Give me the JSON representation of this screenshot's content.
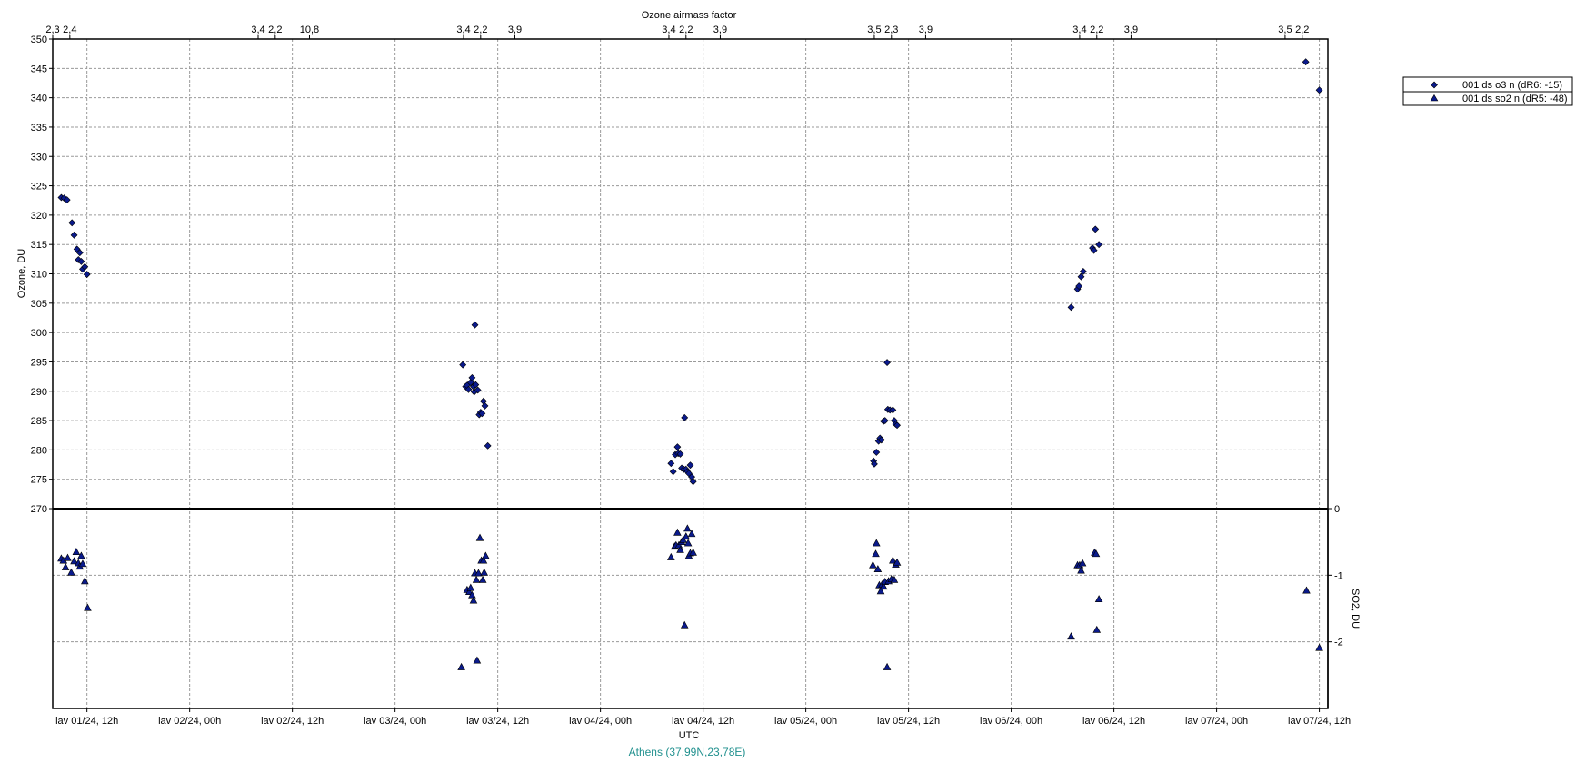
{
  "chart_data": {
    "type": "scatter",
    "top_axis": {
      "title": "Ozone airmass factor",
      "ticks": [
        {
          "x": "lav 01/24, 08h",
          "label": "2,3"
        },
        {
          "x": "lav 01/24, 10h",
          "label": "2,4"
        },
        {
          "x": "lav 02/24, 08h",
          "label": "3,4"
        },
        {
          "x": "lav 02/24, 10h",
          "label": "2,2"
        },
        {
          "x": "lav 02/24, 14h",
          "label": "10,8"
        },
        {
          "x": "lav 03/24, 08h",
          "label": "3,4"
        },
        {
          "x": "lav 03/24, 10h",
          "label": "2,2"
        },
        {
          "x": "lav 03/24, 14h",
          "label": "3,9"
        },
        {
          "x": "lav 04/24, 08h",
          "label": "3,4"
        },
        {
          "x": "lav 04/24, 10h",
          "label": "2,2"
        },
        {
          "x": "lav 04/24, 14h",
          "label": "3,9"
        },
        {
          "x": "lav 05/24, 08h",
          "label": "3,5"
        },
        {
          "x": "lav 05/24, 10h",
          "label": "2,3"
        },
        {
          "x": "lav 05/24, 14h",
          "label": "3,9"
        },
        {
          "x": "lav 06/24, 08h",
          "label": "3,4"
        },
        {
          "x": "lav 06/24, 10h",
          "label": "2,2"
        },
        {
          "x": "lav 06/24, 14h",
          "label": "3,9"
        },
        {
          "x": "lav 07/24, 08h",
          "label": "3,5"
        },
        {
          "x": "lav 07/24, 10h",
          "label": "2,2"
        }
      ]
    },
    "x_axis": {
      "title": "UTC",
      "ticks": [
        "lav 01/24, 12h",
        "lav 02/24, 00h",
        "lav 02/24, 12h",
        "lav 03/24, 00h",
        "lav 03/24, 12h",
        "lav 04/24, 00h",
        "lav 04/24, 12h",
        "lav 05/24, 00h",
        "lav 05/24, 12h",
        "lav 06/24, 00h",
        "lav 06/24, 12h",
        "lav 07/24, 00h",
        "lav 07/24, 12h"
      ]
    },
    "ozone_axis": {
      "title": "Ozone, DU",
      "range": [
        270,
        350
      ],
      "ticks": [
        270,
        275,
        280,
        285,
        290,
        295,
        300,
        305,
        310,
        315,
        320,
        325,
        330,
        335,
        340,
        345,
        350
      ]
    },
    "so2_axis": {
      "title": "SO2, DU",
      "range": [
        -3,
        0
      ],
      "ticks": [
        {
          "value": 0,
          "label": "0"
        },
        {
          "value": -1,
          "label": "-1"
        },
        {
          "value": -2,
          "label": "-2"
        }
      ]
    },
    "grid": true,
    "legend_position": "top-right",
    "footer": "Athens (37,99N,23,78E)",
    "series": [
      {
        "name": "001 ds o3  n (dR6: -15)",
        "marker": "diamond",
        "color": "#0a1a8c",
        "axis": "ozone",
        "points": [
          [
            "lav 01/24, 09:00",
            323.0
          ],
          [
            "lav 01/24, 09:20",
            322.9
          ],
          [
            "lav 01/24, 09:40",
            322.6
          ],
          [
            "lav 01/24, 10:15",
            318.7
          ],
          [
            "lav 01/24, 10:30",
            316.6
          ],
          [
            "lav 01/24, 10:50",
            314.2
          ],
          [
            "lav 01/24, 11:00",
            312.4
          ],
          [
            "lav 01/24, 11:10",
            313.6
          ],
          [
            "lav 01/24, 11:20",
            312.1
          ],
          [
            "lav 01/24, 11:30",
            310.8
          ],
          [
            "lav 01/24, 11:45",
            311.2
          ],
          [
            "lav 01/24, 12:00",
            309.9
          ],
          [
            "lav 03/24, 07:55",
            294.5
          ],
          [
            "lav 03/24, 08:15",
            290.8
          ],
          [
            "lav 03/24, 08:25",
            291.0
          ],
          [
            "lav 03/24, 08:35",
            290.3
          ],
          [
            "lav 03/24, 08:50",
            291.5
          ],
          [
            "lav 03/24, 09:00",
            292.3
          ],
          [
            "lav 03/24, 09:10",
            290.8
          ],
          [
            "lav 03/24, 09:15",
            289.9
          ],
          [
            "lav 03/24, 09:25",
            291.1
          ],
          [
            "lav 03/24, 09:20",
            301.3
          ],
          [
            "lav 03/24, 09:40",
            290.2
          ],
          [
            "lav 03/24, 09:50",
            286.0
          ],
          [
            "lav 03/24, 10:00",
            286.4
          ],
          [
            "lav 03/24, 10:10",
            286.2
          ],
          [
            "lav 03/24, 10:20",
            288.3
          ],
          [
            "lav 03/24, 10:30",
            287.5
          ],
          [
            "lav 03/24, 10:50",
            280.7
          ],
          [
            "lav 04/24, 08:15",
            277.7
          ],
          [
            "lav 04/24, 08:30",
            276.3
          ],
          [
            "lav 04/24, 08:45",
            279.2
          ],
          [
            "lav 04/24, 09:00",
            280.5
          ],
          [
            "lav 04/24, 09:05",
            279.4
          ],
          [
            "lav 04/24, 09:20",
            279.3
          ],
          [
            "lav 04/24, 09:30",
            276.9
          ],
          [
            "lav 04/24, 09:45",
            276.7
          ],
          [
            "lav 04/24, 09:50",
            285.5
          ],
          [
            "lav 04/24, 10:00",
            276.7
          ],
          [
            "lav 04/24, 10:10",
            276.3
          ],
          [
            "lav 04/24, 10:20",
            276.0
          ],
          [
            "lav 04/24, 10:30",
            277.4
          ],
          [
            "lav 04/24, 10:40",
            275.4
          ],
          [
            "lav 04/24, 10:50",
            274.6
          ],
          [
            "lav 05/24, 07:55",
            278.1
          ],
          [
            "lav 05/24, 08:00",
            277.6
          ],
          [
            "lav 05/24, 08:15",
            279.6
          ],
          [
            "lav 05/24, 08:30",
            281.5
          ],
          [
            "lav 05/24, 08:40",
            282.0
          ],
          [
            "lav 05/24, 08:50",
            281.7
          ],
          [
            "lav 05/24, 09:05",
            284.9
          ],
          [
            "lav 05/24, 09:15",
            285.0
          ],
          [
            "lav 05/24, 09:30",
            294.9
          ],
          [
            "lav 05/24, 09:35",
            286.9
          ],
          [
            "lav 05/24, 09:50",
            286.8
          ],
          [
            "lav 05/24, 10:10",
            286.8
          ],
          [
            "lav 05/24, 10:20",
            285.0
          ],
          [
            "lav 05/24, 10:30",
            284.4
          ],
          [
            "lav 05/24, 10:40",
            284.2
          ],
          [
            "lav 06/24, 07:00",
            304.3
          ],
          [
            "lav 06/24, 07:45",
            307.4
          ],
          [
            "lav 06/24, 07:55",
            307.9
          ],
          [
            "lav 06/24, 08:10",
            309.5
          ],
          [
            "lav 06/24, 08:25",
            310.4
          ],
          [
            "lav 06/24, 09:30",
            314.4
          ],
          [
            "lav 06/24, 09:40",
            314.0
          ],
          [
            "lav 06/24, 09:50",
            317.6
          ],
          [
            "lav 06/24, 10:15",
            315.0
          ],
          [
            "lav 07/24, 10:25",
            346.1
          ],
          [
            "lav 07/24, 12:00",
            341.3
          ]
        ]
      },
      {
        "name": "001 ds so2 n (dR5: -48)",
        "marker": "triangle",
        "color": "#0a1a8c",
        "axis": "so2",
        "points": [
          [
            "lav 01/24, 09:00",
            -0.75
          ],
          [
            "lav 01/24, 09:15",
            -0.78
          ],
          [
            "lav 01/24, 09:30",
            -0.88
          ],
          [
            "lav 01/24, 09:45",
            -0.74
          ],
          [
            "lav 01/24, 10:10",
            -0.96
          ],
          [
            "lav 01/24, 10:30",
            -0.79
          ],
          [
            "lav 01/24, 10:45",
            -0.65
          ],
          [
            "lav 01/24, 11:00",
            -0.82
          ],
          [
            "lav 01/24, 11:10",
            -0.87
          ],
          [
            "lav 01/24, 11:20",
            -0.71
          ],
          [
            "lav 01/24, 11:30",
            -0.83
          ],
          [
            "lav 01/24, 11:45",
            -1.09
          ],
          [
            "lav 01/24, 12:05",
            -1.49
          ],
          [
            "lav 03/24, 07:45",
            -2.38
          ],
          [
            "lav 03/24, 08:25",
            -1.22
          ],
          [
            "lav 03/24, 08:40",
            -1.25
          ],
          [
            "lav 03/24, 08:50",
            -1.19
          ],
          [
            "lav 03/24, 09:00",
            -1.3
          ],
          [
            "lav 03/24, 09:10",
            -1.38
          ],
          [
            "lav 03/24, 09:20",
            -0.97
          ],
          [
            "lav 03/24, 09:30",
            -1.07
          ],
          [
            "lav 03/24, 09:35",
            -2.28
          ],
          [
            "lav 03/24, 09:45",
            -0.97
          ],
          [
            "lav 03/24, 09:55",
            -0.44
          ],
          [
            "lav 03/24, 10:05",
            -0.78
          ],
          [
            "lav 03/24, 10:15",
            -1.07
          ],
          [
            "lav 03/24, 10:20",
            -0.78
          ],
          [
            "lav 03/24, 10:25",
            -0.96
          ],
          [
            "lav 03/24, 10:35",
            -0.71
          ],
          [
            "lav 04/24, 08:15",
            -0.73
          ],
          [
            "lav 04/24, 08:40",
            -0.57
          ],
          [
            "lav 04/24, 08:50",
            -0.55
          ],
          [
            "lav 04/24, 09:00",
            -0.36
          ],
          [
            "lav 04/24, 09:10",
            -0.55
          ],
          [
            "lav 04/24, 09:20",
            -0.62
          ],
          [
            "lav 04/24, 09:30",
            -0.5
          ],
          [
            "lav 04/24, 09:40",
            -0.47
          ],
          [
            "lav 04/24, 09:50",
            -1.75
          ],
          [
            "lav 04/24, 10:00",
            -0.42
          ],
          [
            "lav 04/24, 10:10",
            -0.3
          ],
          [
            "lav 04/24, 10:15",
            -0.52
          ],
          [
            "lav 04/24, 10:20",
            -0.71
          ],
          [
            "lav 04/24, 10:30",
            -0.67
          ],
          [
            "lav 04/24, 10:40",
            -0.38
          ],
          [
            "lav 04/24, 10:50",
            -0.66
          ],
          [
            "lav 05/24, 07:50",
            -0.85
          ],
          [
            "lav 05/24, 08:10",
            -0.68
          ],
          [
            "lav 05/24, 08:15",
            -0.52
          ],
          [
            "lav 05/24, 08:25",
            -0.91
          ],
          [
            "lav 05/24, 08:35",
            -1.15
          ],
          [
            "lav 05/24, 08:45",
            -1.24
          ],
          [
            "lav 05/24, 08:55",
            -1.14
          ],
          [
            "lav 05/24, 09:05",
            -1.17
          ],
          [
            "lav 05/24, 09:15",
            -1.1
          ],
          [
            "lav 05/24, 09:30",
            -2.38
          ],
          [
            "lav 05/24, 09:40",
            -1.09
          ],
          [
            "lav 05/24, 10:00",
            -1.06
          ],
          [
            "lav 05/24, 10:10",
            -0.78
          ],
          [
            "lav 05/24, 10:20",
            -1.07
          ],
          [
            "lav 05/24, 10:30",
            -0.84
          ],
          [
            "lav 05/24, 10:40",
            -0.81
          ],
          [
            "lav 06/24, 07:00",
            -1.92
          ],
          [
            "lav 06/24, 07:45",
            -0.85
          ],
          [
            "lav 06/24, 08:00",
            -0.85
          ],
          [
            "lav 06/24, 08:10",
            -0.93
          ],
          [
            "lav 06/24, 08:20",
            -0.82
          ],
          [
            "lav 06/24, 09:45",
            -0.66
          ],
          [
            "lav 06/24, 09:55",
            -0.68
          ],
          [
            "lav 06/24, 10:00",
            -1.82
          ],
          [
            "lav 06/24, 10:15",
            -1.36
          ],
          [
            "lav 07/24, 10:30",
            -1.23
          ],
          [
            "lav 07/24, 12:00",
            -2.09
          ]
        ]
      }
    ]
  }
}
